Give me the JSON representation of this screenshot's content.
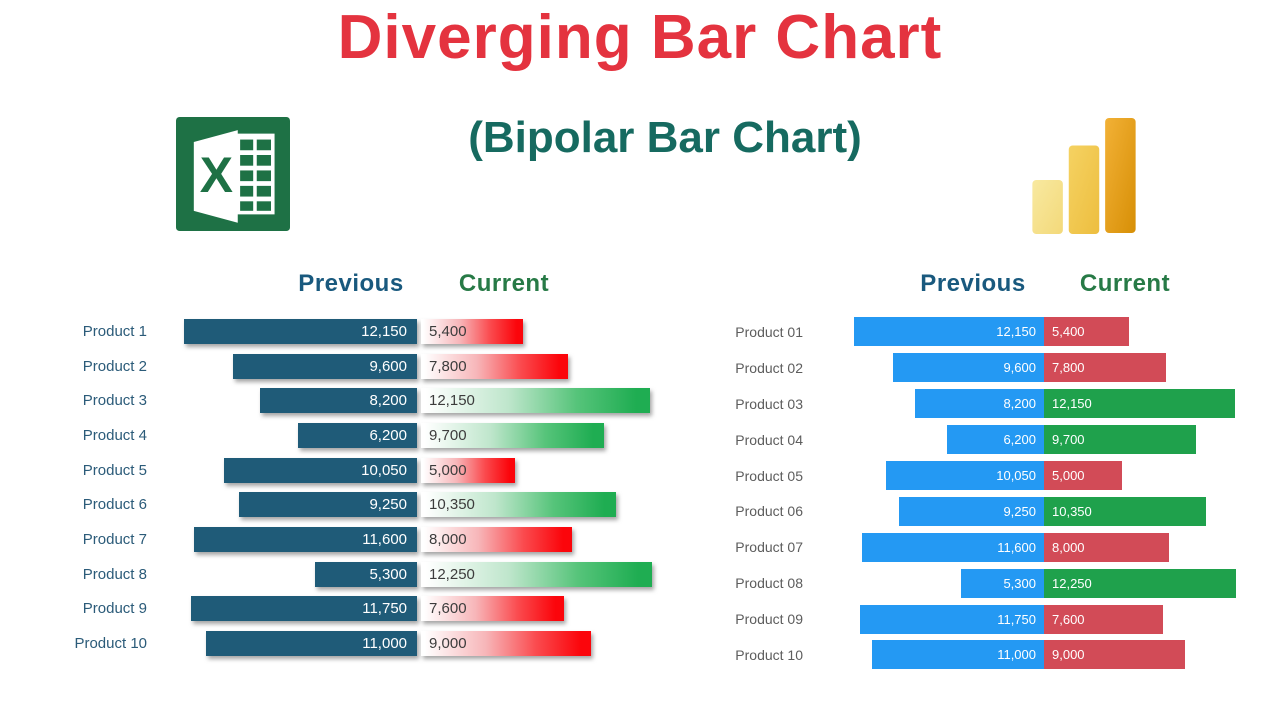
{
  "header": {
    "title": "Diverging Bar Chart",
    "subtitle": "(Bipolar Bar Chart)",
    "title_color": "#E4333F",
    "subtitle_color": "#166A60",
    "icons": {
      "left": "excel-logo",
      "right": "power-bi-logo"
    }
  },
  "chart_data": [
    {
      "type": "bar",
      "variant": "horizontal-diverging",
      "tool": "Excel",
      "column_headers": {
        "previous": "Previous",
        "current": "Current"
      },
      "categories": [
        "Product 1",
        "Product 2",
        "Product 3",
        "Product 4",
        "Product 5",
        "Product 6",
        "Product 7",
        "Product 8",
        "Product 9",
        "Product 10"
      ],
      "series": [
        {
          "name": "Previous",
          "values": [
            12150,
            9600,
            8200,
            6200,
            10050,
            9250,
            11600,
            5300,
            11750,
            11000
          ]
        },
        {
          "name": "Current",
          "values": [
            5400,
            7800,
            12150,
            9700,
            5000,
            10350,
            8000,
            12250,
            7600,
            9000
          ]
        }
      ],
      "xmax": 12500,
      "legend_rule": "current bar is green when Current > Previous, red otherwise",
      "styles": {
        "previous_bar": "#1F5B78",
        "current_up_gradient": [
          "#FFFFFF",
          "#BFE6CC",
          "#56C47A",
          "#1FAD52"
        ],
        "current_down_gradient": [
          "#FFFFFF",
          "#F7B6B9",
          "#FA4A4E",
          "#FB050B"
        ],
        "category_color": "#2B5B79",
        "prev_value_color": "#FFFFFF",
        "curr_value_color": "#3C3C3C",
        "header_previous_color": "#19597E",
        "header_current_color": "#277A46"
      }
    },
    {
      "type": "bar",
      "variant": "horizontal-diverging",
      "tool": "Power BI",
      "column_headers": {
        "previous": "Previous",
        "current": "Current"
      },
      "categories": [
        "Product 01",
        "Product 02",
        "Product 03",
        "Product 04",
        "Product 05",
        "Product 06",
        "Product 07",
        "Product 08",
        "Product 09",
        "Product 10"
      ],
      "series": [
        {
          "name": "Previous",
          "values": [
            12150,
            9600,
            8200,
            6200,
            10050,
            9250,
            11600,
            5300,
            11750,
            11000
          ]
        },
        {
          "name": "Current",
          "values": [
            5400,
            7800,
            12150,
            9700,
            5000,
            10350,
            8000,
            12250,
            7600,
            9000
          ]
        }
      ],
      "xmax": 12500,
      "legend_rule": "current bar is green when Current > Previous, red otherwise",
      "styles": {
        "previous_bar": "#2499F3",
        "current_up": "#1FA14C",
        "current_down": "#D24B57",
        "category_color": "#5D5D5D",
        "prev_value_color": "#FFFFFF",
        "curr_value_color": "#FFFFFF",
        "header_previous_color": "#19597E",
        "header_current_color": "#277A46"
      }
    }
  ]
}
